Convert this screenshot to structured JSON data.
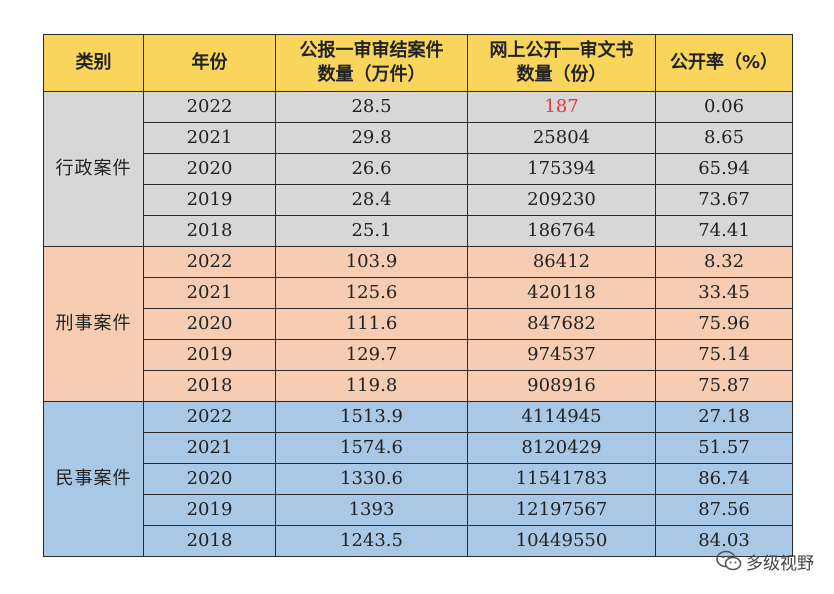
{
  "chart_data": {
    "type": "table",
    "columns": [
      "类别",
      "年份",
      "公报一审审结案件数量（万件）",
      "网上公开一审文书数量（份）",
      "公开率（%）"
    ],
    "header_lines": [
      [
        "类别"
      ],
      [
        "年份"
      ],
      [
        "公报一审审结案件",
        "数量（万件）"
      ],
      [
        "网上公开一审文书",
        "数量（份）"
      ],
      [
        "公开率（%）"
      ]
    ],
    "groups": [
      {
        "category": "行政案件",
        "color": "#d7d7d7",
        "rows": [
          {
            "year": "2022",
            "concluded": "28.5",
            "published": "187",
            "rate": "0.06",
            "published_color": "#e53935"
          },
          {
            "year": "2021",
            "concluded": "29.8",
            "published": "25804",
            "rate": "8.65"
          },
          {
            "year": "2020",
            "concluded": "26.6",
            "published": "175394",
            "rate": "65.94"
          },
          {
            "year": "2019",
            "concluded": "28.4",
            "published": "209230",
            "rate": "73.67"
          },
          {
            "year": "2018",
            "concluded": "25.1",
            "published": "186764",
            "rate": "74.41"
          }
        ]
      },
      {
        "category": "刑事案件",
        "color": "#f6cdb2",
        "rows": [
          {
            "year": "2022",
            "concluded": "103.9",
            "published": "86412",
            "rate": "8.32"
          },
          {
            "year": "2021",
            "concluded": "125.6",
            "published": "420118",
            "rate": "33.45"
          },
          {
            "year": "2020",
            "concluded": "111.6",
            "published": "847682",
            "rate": "75.96"
          },
          {
            "year": "2019",
            "concluded": "129.7",
            "published": "974537",
            "rate": "75.14"
          },
          {
            "year": "2018",
            "concluded": "119.8",
            "published": "908916",
            "rate": "75.87"
          }
        ]
      },
      {
        "category": "民事案件",
        "color": "#a9c8e6",
        "rows": [
          {
            "year": "2022",
            "concluded": "1513.9",
            "published": "4114945",
            "rate": "27.18"
          },
          {
            "year": "2021",
            "concluded": "1574.6",
            "published": "8120429",
            "rate": "51.57"
          },
          {
            "year": "2020",
            "concluded": "1330.6",
            "published": "11541783",
            "rate": "86.74"
          },
          {
            "year": "2019",
            "concluded": "1393",
            "published": "12197567",
            "rate": "87.56"
          },
          {
            "year": "2018",
            "concluded": "1243.5",
            "published": "10449550",
            "rate": "84.03"
          }
        ]
      }
    ],
    "header_color": "#f9d55c"
  },
  "watermark": {
    "text": "多级视野",
    "icon": "wechat-icon"
  }
}
